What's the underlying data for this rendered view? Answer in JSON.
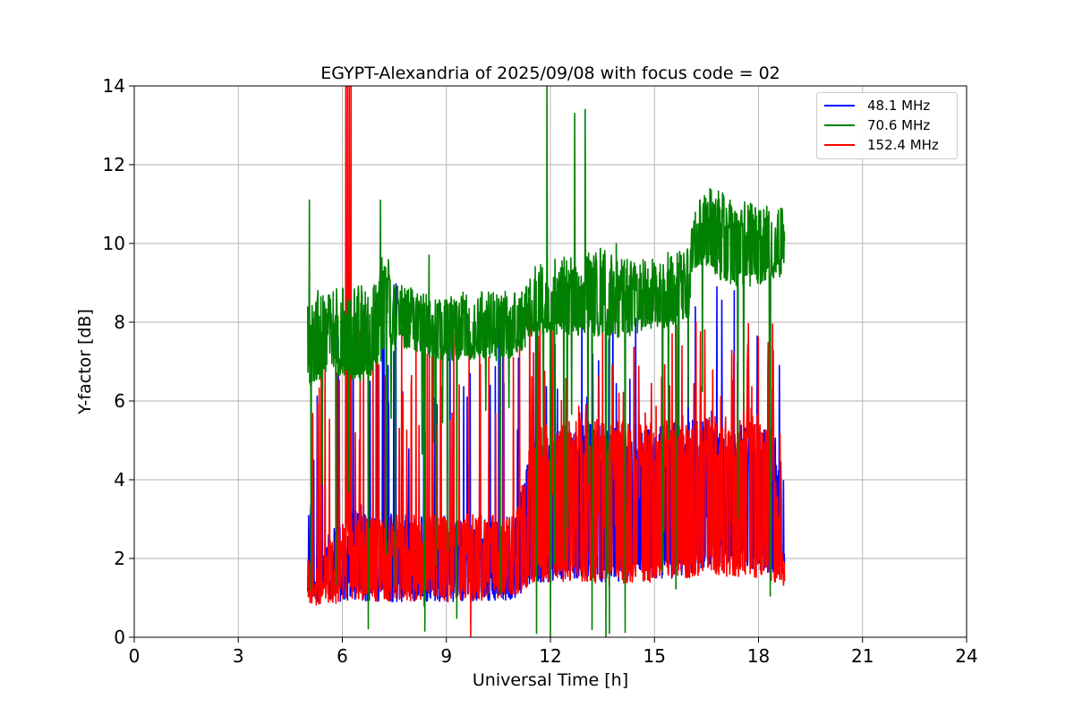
{
  "chart_data": {
    "type": "line",
    "title": "EGYPT-Alexandria of 2025/09/08 with focus code = 02",
    "xlabel": "Universal Time [h]",
    "ylabel": "Y-factor [dB]",
    "xlim": [
      0,
      24
    ],
    "ylim": [
      0,
      14
    ],
    "xticks": [
      "0",
      "3",
      "6",
      "9",
      "12",
      "15",
      "18",
      "21",
      "24"
    ],
    "yticks": [
      "0",
      "2",
      "4",
      "6",
      "8",
      "10",
      "12",
      "14"
    ],
    "grid": true,
    "legend_position": "top-right",
    "series": [
      {
        "name": "48.1 MHz",
        "color": "#0000ff",
        "x": [
          5.0,
          5.3,
          5.6,
          6.0,
          6.5,
          7.0,
          7.5,
          8.0,
          8.5,
          9.0,
          9.5,
          10.0,
          10.5,
          11.0,
          11.5,
          12.0,
          12.5,
          13.0,
          13.5,
          14.0,
          14.5,
          15.0,
          15.5,
          16.0,
          16.5,
          17.0,
          17.5,
          18.0,
          18.4,
          18.75
        ],
        "values": [
          4.2,
          2.8,
          2.6,
          3.0,
          3.4,
          3.0,
          3.3,
          3.2,
          3.1,
          3.1,
          3.0,
          3.1,
          3.0,
          3.2,
          5.0,
          5.2,
          5.3,
          5.4,
          5.4,
          5.4,
          5.3,
          5.4,
          5.5,
          5.5,
          5.6,
          5.6,
          5.5,
          5.6,
          5.5,
          4.6
        ],
        "bottom": [
          1.0,
          0.9,
          0.9,
          0.9,
          0.9,
          0.9,
          0.9,
          0.9,
          0.9,
          0.9,
          0.9,
          0.9,
          0.9,
          1.0,
          1.4,
          1.4,
          1.5,
          1.5,
          1.4,
          1.4,
          1.5,
          1.5,
          1.5,
          1.6,
          1.8,
          1.9,
          1.8,
          1.7,
          1.6,
          1.6
        ],
        "noise": 0.55,
        "spike_count": 70,
        "spike_min": 4.0,
        "spike_max": 9.0,
        "spikes": [
          [
            6.8,
            6.5
          ],
          [
            9.6,
            6.1
          ],
          [
            12.2,
            6.3
          ],
          [
            15.7,
            8.4
          ],
          [
            16.8,
            8.9
          ],
          [
            17.3,
            8.8
          ],
          [
            18.6,
            6.9
          ]
        ]
      },
      {
        "name": "70.6 MHz",
        "color": "#008000",
        "x": [
          5.0,
          5.3,
          5.6,
          6.0,
          6.5,
          7.0,
          7.2,
          7.5,
          8.0,
          8.5,
          9.0,
          9.5,
          10.0,
          10.5,
          11.0,
          11.5,
          12.0,
          12.5,
          13.0,
          13.5,
          14.0,
          14.5,
          15.0,
          15.5,
          16.0,
          16.1,
          16.3,
          16.6,
          17.0,
          17.5,
          18.0,
          18.5,
          18.75
        ],
        "values": [
          8.6,
          8.9,
          8.8,
          8.9,
          9.0,
          9.0,
          10.2,
          9.0,
          8.9,
          8.8,
          8.7,
          8.8,
          8.8,
          8.8,
          8.8,
          9.4,
          9.6,
          9.7,
          9.8,
          9.9,
          9.6,
          9.6,
          9.7,
          9.8,
          9.9,
          10.6,
          11.1,
          11.4,
          11.3,
          11.1,
          11.0,
          10.9,
          10.9
        ],
        "bottom": [
          6.3,
          6.5,
          6.8,
          6.6,
          6.5,
          6.7,
          7.2,
          7.4,
          7.3,
          7.1,
          7.0,
          7.0,
          7.1,
          7.0,
          7.1,
          7.6,
          7.7,
          7.6,
          7.7,
          7.6,
          7.6,
          7.7,
          7.8,
          7.9,
          8.1,
          9.2,
          9.5,
          9.3,
          9.0,
          8.9,
          8.9,
          9.1,
          9.2
        ],
        "noise": 0.45,
        "spike_count": 40,
        "spike_min": 0.0,
        "spike_max": 6.5,
        "spikes": [
          [
            5.05,
            11.1
          ],
          [
            7.1,
            11.1
          ],
          [
            8.5,
            9.7
          ],
          [
            11.9,
            14.0
          ],
          [
            12.7,
            13.3
          ],
          [
            13.0,
            13.4
          ],
          [
            13.9,
            10.0
          ],
          [
            5.1,
            1.2
          ],
          [
            11.6,
            0.1
          ],
          [
            12.0,
            0.0
          ],
          [
            13.2,
            0.2
          ],
          [
            13.6,
            0.0
          ],
          [
            13.7,
            0.1
          ]
        ]
      },
      {
        "name": "152.4 MHz",
        "color": "#ff0000",
        "x": [
          5.0,
          5.3,
          5.6,
          6.0,
          6.5,
          7.0,
          7.5,
          8.0,
          8.5,
          9.0,
          9.5,
          10.0,
          10.5,
          11.0,
          11.5,
          12.0,
          12.5,
          13.0,
          13.5,
          14.0,
          14.5,
          15.0,
          15.5,
          16.0,
          16.5,
          17.0,
          17.5,
          18.0,
          18.4,
          18.75
        ],
        "values": [
          2.1,
          1.9,
          2.4,
          3.0,
          3.1,
          3.1,
          3.1,
          3.1,
          3.2,
          3.2,
          3.1,
          3.2,
          3.1,
          3.2,
          5.3,
          5.4,
          5.5,
          5.6,
          5.5,
          5.5,
          5.4,
          5.5,
          5.5,
          5.5,
          5.6,
          5.6,
          5.5,
          5.5,
          5.5,
          1.9
        ],
        "bottom": [
          0.9,
          0.8,
          0.8,
          0.8,
          0.9,
          0.9,
          0.9,
          0.9,
          1.0,
          0.9,
          0.9,
          0.9,
          1.0,
          1.0,
          1.4,
          1.4,
          1.4,
          1.4,
          1.3,
          1.3,
          1.4,
          1.4,
          1.5,
          1.5,
          1.6,
          1.5,
          1.5,
          1.5,
          1.4,
          1.3
        ],
        "noise": 0.5,
        "spike_count": 120,
        "spike_min": 5.0,
        "spike_max": 8.0,
        "spikes": [
          [
            6.1,
            14.0
          ],
          [
            6.15,
            14.0
          ],
          [
            6.2,
            14.0
          ],
          [
            6.25,
            14.0
          ],
          [
            11.4,
            8.6
          ],
          [
            11.7,
            8.3
          ],
          [
            16.2,
            8.0
          ],
          [
            9.7,
            0.0
          ]
        ]
      }
    ]
  }
}
